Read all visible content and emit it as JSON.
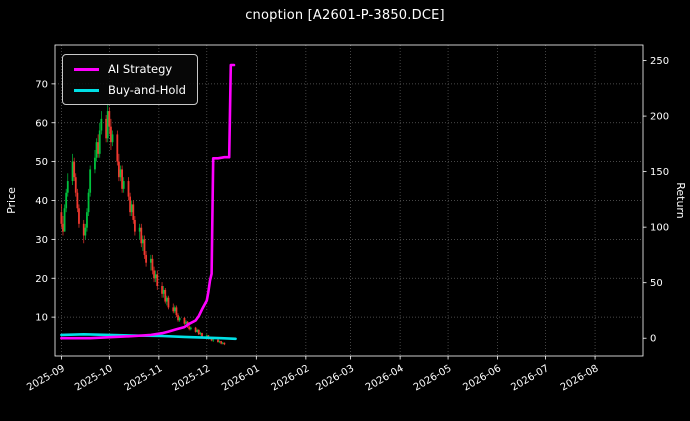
{
  "title": "cnoption [A2601-P-3850.DCE]",
  "legend": {
    "items": [
      {
        "label": "AI Strategy",
        "color": "#ff00ff"
      },
      {
        "label": "Buy-and-Hold",
        "color": "#00e0e6"
      }
    ]
  },
  "chart_data": {
    "type": "candlestick",
    "title": "cnoption [A2601-P-3850.DCE]",
    "background": "#000000",
    "text_color": "#ffffff",
    "grid": {
      "on": true,
      "color": "#606060",
      "style": "dotted"
    },
    "legend_position": "upper-left",
    "left_axis": {
      "label": "Price",
      "ylim": [
        0,
        80
      ],
      "ticks": [
        10,
        20,
        30,
        40,
        50,
        60,
        70
      ]
    },
    "right_axis": {
      "label": "Return",
      "ylim": [
        -16,
        264
      ],
      "ticks": [
        0,
        50,
        100,
        150,
        200,
        250
      ]
    },
    "x_axis": {
      "start": "2025-08-28",
      "end": "2026-08-31",
      "ticks": [
        {
          "d": "2025-09-01",
          "label": "2025-09"
        },
        {
          "d": "2025-10-01",
          "label": "2025-10"
        },
        {
          "d": "2025-11-01",
          "label": "2025-11"
        },
        {
          "d": "2025-12-01",
          "label": "2025-12"
        },
        {
          "d": "2026-01-01",
          "label": "2026-01"
        },
        {
          "d": "2026-02-01",
          "label": "2026-02"
        },
        {
          "d": "2026-03-01",
          "label": "2026-03"
        },
        {
          "d": "2026-04-01",
          "label": "2026-04"
        },
        {
          "d": "2026-05-01",
          "label": "2026-05"
        },
        {
          "d": "2026-06-01",
          "label": "2026-06"
        },
        {
          "d": "2026-07-01",
          "label": "2026-07"
        },
        {
          "d": "2026-08-01",
          "label": "2026-08"
        }
      ]
    },
    "candles": {
      "up_color": "#00c23d",
      "down_color": "#f0382f",
      "data": [
        [
          "2025-09-01",
          37,
          39,
          33,
          34
        ],
        [
          "2025-09-02",
          34,
          36,
          31,
          32
        ],
        [
          "2025-09-03",
          32,
          39,
          32,
          38
        ],
        [
          "2025-09-04",
          38,
          43,
          37,
          42
        ],
        [
          "2025-09-05",
          42,
          47,
          41,
          45
        ],
        [
          "2025-09-08",
          45,
          52,
          44,
          50
        ],
        [
          "2025-09-09",
          50,
          51,
          45,
          46
        ],
        [
          "2025-09-10",
          46,
          47,
          41,
          42
        ],
        [
          "2025-09-11",
          42,
          43,
          37,
          38
        ],
        [
          "2025-09-12",
          38,
          39,
          33,
          34
        ],
        [
          "2025-09-15",
          34,
          35,
          29,
          31
        ],
        [
          "2025-09-16",
          31,
          34,
          30,
          33
        ],
        [
          "2025-09-17",
          33,
          38,
          32,
          37
        ],
        [
          "2025-09-18",
          37,
          43,
          36,
          42
        ],
        [
          "2025-09-19",
          42,
          49,
          41,
          48
        ],
        [
          "2025-09-22",
          48,
          53,
          47,
          51
        ],
        [
          "2025-09-23",
          51,
          56,
          50,
          55
        ],
        [
          "2025-09-24",
          55,
          57,
          51,
          52
        ],
        [
          "2025-09-25",
          52,
          60,
          51,
          58
        ],
        [
          "2025-09-26",
          58,
          63,
          57,
          61
        ],
        [
          "2025-09-29",
          61,
          62,
          55,
          56
        ],
        [
          "2025-09-30",
          56,
          65,
          55,
          63
        ],
        [
          "2025-10-01",
          63,
          64,
          57,
          59
        ],
        [
          "2025-10-02",
          59,
          61,
          53,
          55
        ],
        [
          "2025-10-03",
          55,
          58,
          54,
          57
        ],
        [
          "2025-10-06",
          57,
          58,
          49,
          50
        ],
        [
          "2025-10-07",
          50,
          52,
          45,
          46
        ],
        [
          "2025-10-08",
          46,
          49,
          45,
          48
        ],
        [
          "2025-10-09",
          48,
          49,
          42,
          43
        ],
        [
          "2025-10-10",
          43,
          46,
          42,
          45
        ],
        [
          "2025-10-13",
          45,
          46,
          40,
          41
        ],
        [
          "2025-10-14",
          41,
          42,
          36,
          37
        ],
        [
          "2025-10-15",
          37,
          40,
          36,
          39
        ],
        [
          "2025-10-16",
          39,
          40,
          34,
          35
        ],
        [
          "2025-10-17",
          35,
          36,
          31,
          32
        ],
        [
          "2025-10-20",
          32,
          34,
          30,
          33
        ],
        [
          "2025-10-21",
          33,
          34,
          28,
          29
        ],
        [
          "2025-10-22",
          29,
          31,
          27,
          30
        ],
        [
          "2025-10-23",
          30,
          31,
          25,
          26
        ],
        [
          "2025-10-24",
          26,
          27,
          23,
          24
        ],
        [
          "2025-10-27",
          24,
          26,
          22,
          25
        ],
        [
          "2025-10-28",
          25,
          26,
          21,
          22
        ],
        [
          "2025-10-29",
          22,
          23,
          19,
          20
        ],
        [
          "2025-10-30",
          20,
          22,
          19,
          21
        ],
        [
          "2025-10-31",
          21,
          22,
          17,
          18
        ],
        [
          "2025-11-03",
          18,
          19,
          15,
          16
        ],
        [
          "2025-11-04",
          16,
          18,
          15,
          17
        ],
        [
          "2025-11-05",
          17,
          17.5,
          13.5,
          14
        ],
        [
          "2025-11-06",
          14,
          15.5,
          13,
          15
        ],
        [
          "2025-11-07",
          15,
          15.5,
          12,
          12.5
        ],
        [
          "2025-11-10",
          12.5,
          13.5,
          11,
          11.5
        ],
        [
          "2025-11-11",
          11.5,
          13,
          11,
          12.5
        ],
        [
          "2025-11-12",
          12.5,
          13,
          10,
          10.5
        ],
        [
          "2025-11-13",
          10.5,
          11,
          8.8,
          9.2
        ],
        [
          "2025-11-14",
          9.2,
          10.2,
          8.8,
          9.8
        ],
        [
          "2025-11-17",
          9.8,
          10,
          8,
          8.3
        ],
        [
          "2025-11-18",
          8.3,
          9.2,
          8,
          8.8
        ],
        [
          "2025-11-19",
          8.8,
          9,
          7.2,
          7.5
        ],
        [
          "2025-11-20",
          7.5,
          8,
          6.6,
          6.9
        ],
        [
          "2025-11-21",
          6.9,
          7.6,
          6.6,
          7.3
        ],
        [
          "2025-11-24",
          7.3,
          7.5,
          6,
          6.2
        ],
        [
          "2025-11-25",
          6.2,
          7,
          6,
          6.7
        ],
        [
          "2025-11-26",
          6.7,
          6.9,
          5.4,
          5.6
        ],
        [
          "2025-11-27",
          5.6,
          6.2,
          5.3,
          5.9
        ],
        [
          "2025-11-28",
          5.9,
          6,
          4.6,
          4.8
        ],
        [
          "2025-12-01",
          4.8,
          5.6,
          4.6,
          5.3
        ],
        [
          "2025-12-02",
          5.3,
          5.4,
          4.2,
          4.4
        ],
        [
          "2025-12-03",
          4.4,
          5,
          4.2,
          4.8
        ],
        [
          "2025-12-04",
          4.8,
          4.9,
          3.8,
          4
        ],
        [
          "2025-12-05",
          4,
          4.4,
          3.6,
          4.2
        ],
        [
          "2025-12-08",
          4.2,
          4.3,
          3.4,
          3.6
        ],
        [
          "2025-12-09",
          3.6,
          4,
          3.3,
          3.8
        ],
        [
          "2025-12-10",
          3.8,
          3.9,
          3,
          3.2
        ],
        [
          "2025-12-11",
          3.2,
          3.6,
          3,
          3.4
        ],
        [
          "2025-12-12",
          3.4,
          3.5,
          2.8,
          3
        ]
      ]
    },
    "series": [
      {
        "name": "AI Strategy",
        "axis": "right",
        "color": "#ff00ff",
        "width": 2.6,
        "points": [
          [
            "2025-09-01",
            0
          ],
          [
            "2025-09-19",
            0
          ],
          [
            "2025-10-03",
            1
          ],
          [
            "2025-10-17",
            2
          ],
          [
            "2025-10-27",
            3
          ],
          [
            "2025-11-03",
            4.5
          ],
          [
            "2025-11-07",
            6
          ],
          [
            "2025-11-12",
            8
          ],
          [
            "2025-11-17",
            10
          ],
          [
            "2025-11-20",
            13
          ],
          [
            "2025-11-24",
            16
          ],
          [
            "2025-11-26",
            20
          ],
          [
            "2025-11-28",
            26
          ],
          [
            "2025-12-01",
            34
          ],
          [
            "2025-12-02",
            42
          ],
          [
            "2025-12-03",
            52
          ],
          [
            "2025-12-04",
            58
          ],
          [
            "2025-12-05",
            162
          ],
          [
            "2025-12-08",
            162
          ],
          [
            "2025-12-12",
            163
          ],
          [
            "2025-12-15",
            163
          ],
          [
            "2025-12-16",
            246
          ],
          [
            "2025-12-18",
            246
          ]
        ]
      },
      {
        "name": "Buy-and-Hold",
        "axis": "right",
        "color": "#00e0e6",
        "width": 2.6,
        "points": [
          [
            "2025-09-01",
            3
          ],
          [
            "2025-09-15",
            3.5
          ],
          [
            "2025-10-01",
            3
          ],
          [
            "2025-10-15",
            2.5
          ],
          [
            "2025-11-03",
            2
          ],
          [
            "2025-11-17",
            1.2
          ],
          [
            "2025-12-01",
            0.5
          ],
          [
            "2025-12-10",
            0
          ],
          [
            "2025-12-19",
            -0.5
          ]
        ]
      }
    ]
  }
}
